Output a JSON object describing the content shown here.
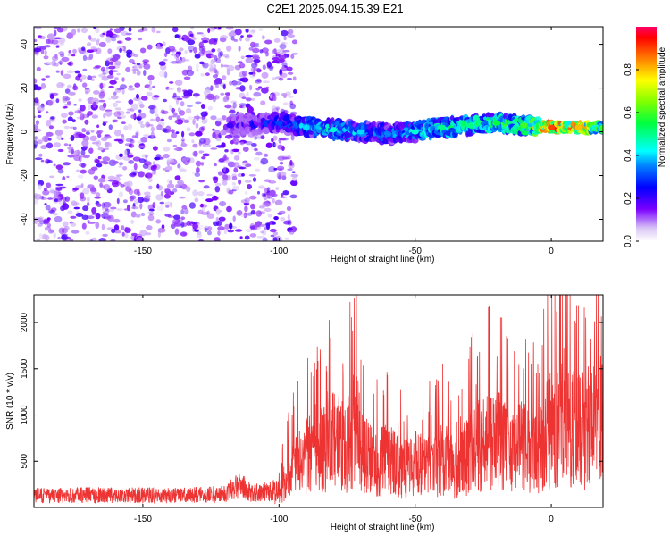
{
  "title": "C2E1.2025.094.15.39.E21",
  "chart_data": [
    {
      "type": "heatmap",
      "xlabel": "Height of straight line (km)",
      "ylabel": "Frequency (Hz)",
      "xlim": [
        -190,
        19
      ],
      "ylim": [
        -50,
        48
      ],
      "xticks": [
        -150,
        -100,
        -50,
        0
      ],
      "yticks": [
        -40,
        -20,
        0,
        20,
        40
      ],
      "colorbar": {
        "label": "Normalized spectral amplitude",
        "range": [
          0,
          1
        ],
        "ticks": [
          0.0,
          0.2,
          0.4,
          0.6,
          0.8
        ]
      },
      "noise_region": {
        "x": [
          -190,
          -100
        ],
        "y": [
          -50,
          48
        ],
        "amplitude": [
          0.05,
          0.2
        ]
      },
      "ridge": [
        {
          "x": -118,
          "freq": 3,
          "amplitude": 0.2
        },
        {
          "x": -100,
          "freq": 4,
          "amplitude": 0.3
        },
        {
          "x": -90,
          "freq": 2,
          "amplitude": 0.4
        },
        {
          "x": -80,
          "freq": 1,
          "amplitude": 0.45
        },
        {
          "x": -70,
          "freq": 0,
          "amplitude": 0.4
        },
        {
          "x": -60,
          "freq": -1,
          "amplitude": 0.35
        },
        {
          "x": -50,
          "freq": 0,
          "amplitude": 0.45
        },
        {
          "x": -40,
          "freq": 2,
          "amplitude": 0.5
        },
        {
          "x": -30,
          "freq": 3,
          "amplitude": 0.5
        },
        {
          "x": -20,
          "freq": 4,
          "amplitude": 0.55
        },
        {
          "x": -10,
          "freq": 3,
          "amplitude": 0.6
        },
        {
          "x": 0,
          "freq": 2,
          "amplitude": 0.9
        },
        {
          "x": 10,
          "freq": 2,
          "amplitude": 0.8
        },
        {
          "x": 19,
          "freq": 2,
          "amplitude": 0.6
        }
      ]
    },
    {
      "type": "line",
      "xlabel": "Height of straight line (km)",
      "ylabel": "SNR (10 * v/v)",
      "xlim": [
        -190,
        19
      ],
      "ylim": [
        0,
        2300
      ],
      "xticks": [
        -150,
        -100,
        -50,
        0
      ],
      "yticks": [
        500,
        1000,
        1500,
        2000
      ],
      "series": [
        {
          "color": "#ee3333",
          "x": [
            -190,
            -180,
            -170,
            -160,
            -150,
            -140,
            -130,
            -120,
            -115,
            -110,
            -105,
            -100,
            -95,
            -90,
            -85,
            -80,
            -75,
            -72,
            -70,
            -65,
            -60,
            -55,
            -50,
            -45,
            -40,
            -35,
            -30,
            -25,
            -20,
            -15,
            -10,
            -5,
            0,
            5,
            10,
            15,
            19
          ],
          "values": [
            150,
            150,
            160,
            150,
            160,
            150,
            160,
            170,
            300,
            180,
            200,
            250,
            600,
            800,
            1000,
            1100,
            950,
            1500,
            900,
            700,
            800,
            600,
            700,
            650,
            800,
            600,
            900,
            1000,
            1100,
            900,
            1000,
            800,
            1300,
            1500,
            1200,
            1300,
            1400
          ]
        }
      ]
    }
  ]
}
